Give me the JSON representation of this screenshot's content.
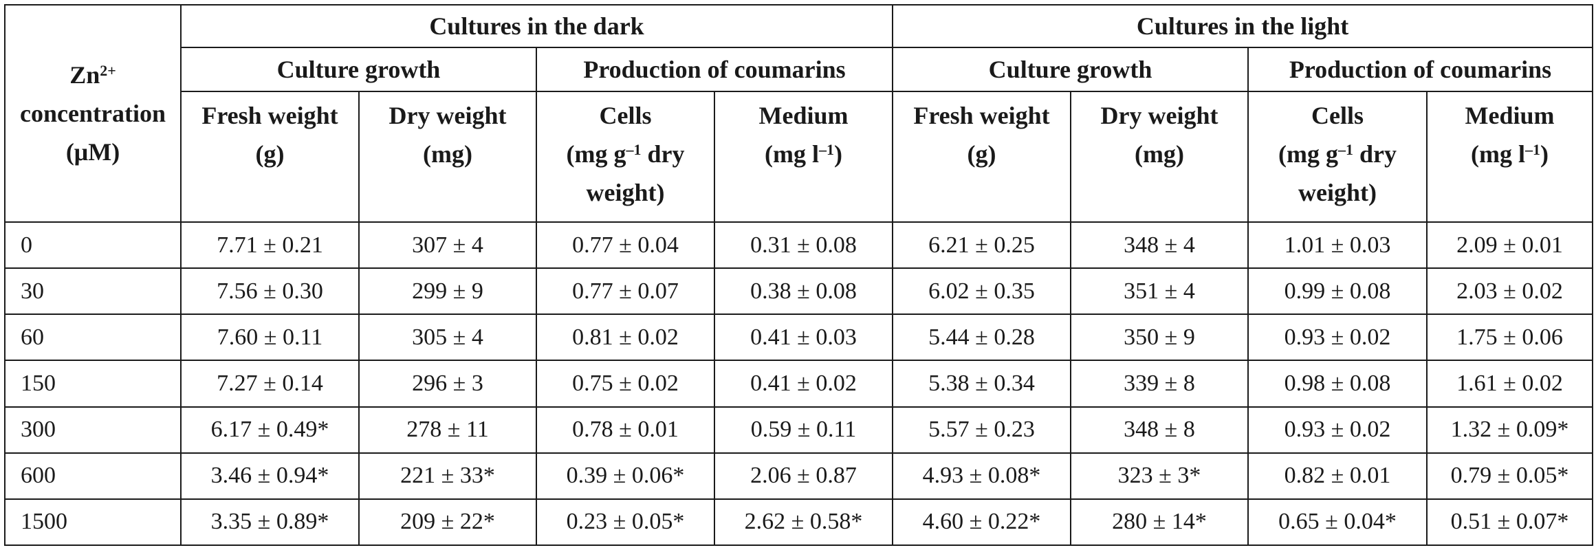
{
  "table": {
    "corner_header": {
      "line1_base": "Zn",
      "line1_sup": "2+",
      "line2": "concentration",
      "line3": "(μM)"
    },
    "group_headers": [
      "Cultures in the dark",
      "Cultures in the light"
    ],
    "subgroup_headers": [
      "Culture growth",
      "Production of coumarins",
      "Culture growth",
      "Production of coumarins"
    ],
    "column_headers": [
      {
        "line1": "Fresh weight",
        "line2": "(g)"
      },
      {
        "line1": "Dry weight",
        "line2": "(mg)"
      },
      {
        "line1": "Cells",
        "line2_pre": "(mg g",
        "line2_sup": "–1",
        "line2_post": " dry",
        "line3": "weight)"
      },
      {
        "line1": "Medium",
        "line2_pre": "(mg l",
        "line2_sup": "–1",
        "line2_post": ")"
      },
      {
        "line1": "Fresh weight",
        "line2": "(g)"
      },
      {
        "line1": "Dry weight",
        "line2": "(mg)"
      },
      {
        "line1": "Cells",
        "line2_pre": "(mg g",
        "line2_sup": "–1",
        "line2_post": " dry",
        "line3": "weight)"
      },
      {
        "line1": "Medium",
        "line2_pre": "(mg l",
        "line2_sup": "–1",
        "line2_post": ")"
      }
    ],
    "rows": [
      [
        "0",
        "7.71 ± 0.21",
        "307 ± 4",
        "0.77 ± 0.04",
        "0.31 ± 0.08",
        "6.21 ± 0.25",
        "348 ± 4",
        "1.01 ± 0.03",
        "2.09 ± 0.01"
      ],
      [
        "30",
        "7.56 ± 0.30",
        "299 ± 9",
        "0.77 ± 0.07",
        "0.38 ± 0.08",
        "6.02 ± 0.35",
        "351 ± 4",
        "0.99 ± 0.08",
        "2.03 ± 0.02"
      ],
      [
        "60",
        "7.60 ± 0.11",
        "305 ± 4",
        "0.81 ± 0.02",
        "0.41 ± 0.03",
        "5.44 ± 0.28",
        "350 ± 9",
        "0.93 ± 0.02",
        "1.75 ± 0.06"
      ],
      [
        "150",
        "7.27 ± 0.14",
        "296 ± 3",
        "0.75 ± 0.02",
        "0.41 ± 0.02",
        "5.38 ± 0.34",
        "339 ± 8",
        "0.98 ± 0.08",
        "1.61 ± 0.02"
      ],
      [
        "300",
        "6.17 ± 0.49*",
        "278 ± 11",
        "0.78 ± 0.01",
        "0.59 ± 0.11",
        "5.57 ± 0.23",
        "348 ± 8",
        "0.93 ± 0.02",
        "1.32 ± 0.09*"
      ],
      [
        "600",
        "3.46 ± 0.94*",
        "221 ± 33*",
        "0.39 ± 0.06*",
        "2.06 ± 0.87",
        "4.93 ± 0.08*",
        "323 ± 3*",
        "0.82 ± 0.01",
        "0.79 ± 0.05*"
      ],
      [
        "1500",
        "3.35 ± 0.89*",
        "209 ± 22*",
        "0.23 ± 0.05*",
        "2.62 ± 0.58*",
        "4.60 ± 0.22*",
        "280 ± 14*",
        "0.65 ± 0.04*",
        "0.51 ± 0.07*"
      ]
    ]
  }
}
